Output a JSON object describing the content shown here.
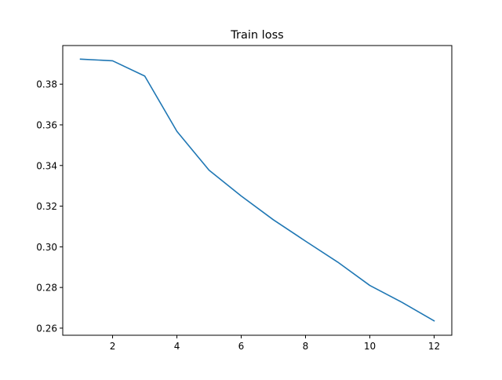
{
  "chart_data": {
    "type": "line",
    "title": "Train loss",
    "xlabel": "",
    "ylabel": "",
    "xlim": [
      0.45,
      12.55
    ],
    "ylim": [
      0.2565,
      0.399
    ],
    "xticks": [
      2,
      4,
      6,
      8,
      10,
      12
    ],
    "xtick_labels": [
      "2",
      "4",
      "6",
      "8",
      "10",
      "12"
    ],
    "yticks": [
      0.26,
      0.28,
      0.3,
      0.32,
      0.34,
      0.36,
      0.38
    ],
    "ytick_labels": [
      "0.26",
      "0.28",
      "0.30",
      "0.32",
      "0.34",
      "0.36",
      "0.38"
    ],
    "grid": false,
    "series": [
      {
        "color": "#1f77b4",
        "x": [
          1,
          2,
          3,
          4,
          5,
          6,
          7,
          8,
          9,
          10,
          11,
          12
        ],
        "y": [
          0.3923,
          0.3915,
          0.384,
          0.3568,
          0.3377,
          0.325,
          0.3133,
          0.3028,
          0.2925,
          0.281,
          0.2727,
          0.2636
        ]
      }
    ]
  }
}
